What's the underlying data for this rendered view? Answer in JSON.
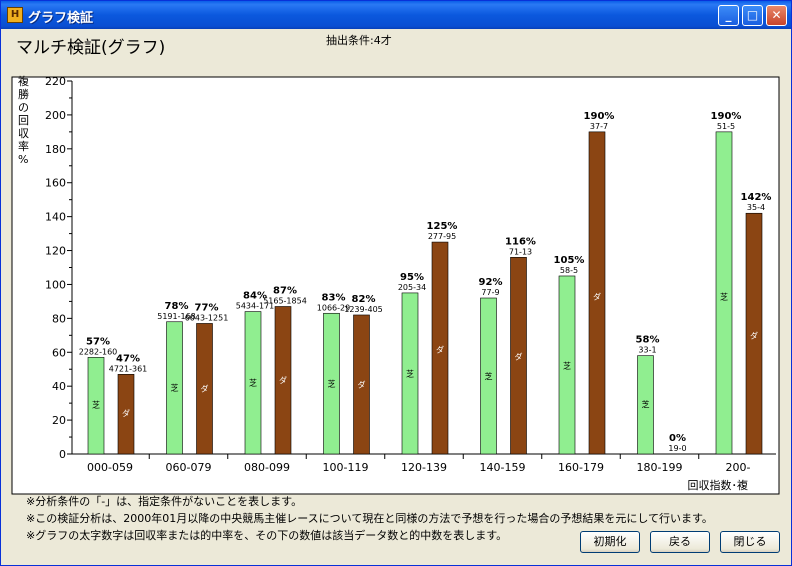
{
  "window": {
    "title": "グラフ検証",
    "minimize": "_",
    "maximize": "□",
    "close": "✕",
    "icon": "app-icon"
  },
  "header": {
    "title": "マルチ検証(グラフ)",
    "condition": "抽出条件:4才"
  },
  "chart_data": {
    "type": "bar",
    "ylabel": "複勝の回収率%",
    "xlabel": "回収指数･複",
    "ylim": [
      0,
      220
    ],
    "yticks": [
      "0",
      "20",
      "40",
      "60",
      "80",
      "100",
      "120",
      "140",
      "160",
      "180",
      "200",
      "220"
    ],
    "categories": [
      "000-059",
      "060-079",
      "080-099",
      "100-119",
      "120-139",
      "140-159",
      "160-179",
      "180-199",
      "200-"
    ],
    "series": [
      {
        "name": "芝",
        "color": "#90ee90",
        "values": [
          57,
          78,
          84,
          83,
          95,
          92,
          105,
          58,
          190
        ],
        "labels": [
          "57%",
          "78%",
          "84%",
          "83%",
          "95%",
          "92%",
          "105%",
          "58%",
          "190%"
        ],
        "counts": [
          "2282-160",
          "5191-168",
          "5434-171",
          "1066-29",
          "205-34",
          "77-9",
          "58-5",
          "33-1",
          "51-5"
        ]
      },
      {
        "name": "ダ",
        "color": "#8b4513",
        "values": [
          47,
          77,
          87,
          82,
          125,
          116,
          190,
          0,
          142
        ],
        "labels": [
          "47%",
          "77%",
          "87%",
          "82%",
          "125%",
          "116%",
          "190%",
          "0%",
          "142%"
        ],
        "counts": [
          "4721-361",
          "6043-1251",
          "5165-1854",
          "1239-405",
          "277-95",
          "71-13",
          "37-7",
          "19-0",
          "35-4"
        ]
      }
    ]
  },
  "notes": [
    "※分析条件の「-」は、指定条件がないことを表します。",
    "※この検証分析は、2000年01月以降の中央競馬主催レースについて現在と同様の方法で予想を行った場合の予想結果を元にして行います。",
    "※グラフの太字数字は回収率または的中率を、その下の数値は該当データ数と的中数を表します。"
  ],
  "buttons": {
    "reset": "初期化",
    "back": "戻る",
    "close": "閉じる"
  }
}
